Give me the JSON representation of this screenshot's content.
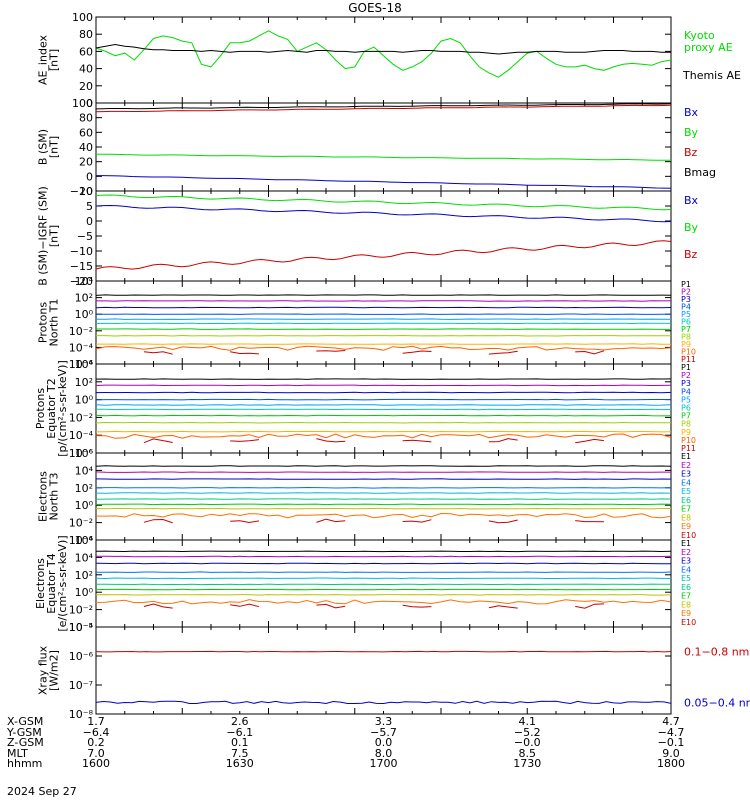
{
  "title": "GOES-18",
  "date_label": "2024 Sep 27",
  "colors": {
    "black": "#000000",
    "green": "#00dd00",
    "blue": "#0000cc",
    "red": "#cc0000"
  },
  "x_range": [
    1600,
    1800
  ],
  "chart_data": [
    {
      "type": "line",
      "name": "ae",
      "ylabel": [
        "AE_index",
        "[nT]"
      ],
      "yscale": "linear",
      "ylim": [
        0,
        100
      ],
      "yticks": [
        "0",
        "20",
        "40",
        "60",
        "80",
        "100"
      ],
      "series": [
        {
          "name": "Kyoto proxy AE",
          "label_lines": [
            "Kyoto",
            "proxy AE"
          ],
          "color": "#00dd00",
          "values": [
            64,
            60,
            55,
            58,
            50,
            62,
            75,
            78,
            76,
            72,
            70,
            45,
            42,
            55,
            70,
            70,
            72,
            78,
            84,
            78,
            74,
            60,
            65,
            70,
            62,
            50,
            40,
            42,
            60,
            65,
            55,
            45,
            38,
            42,
            48,
            58,
            72,
            75,
            70,
            55,
            42,
            35,
            30,
            38,
            48,
            58,
            60,
            52,
            45,
            42,
            42,
            44,
            40,
            38,
            42,
            45,
            46,
            45,
            44,
            48,
            50
          ]
        },
        {
          "name": "Themis AE",
          "label_lines": [
            "Themis AE"
          ],
          "color": "#000000",
          "values": [
            64,
            66,
            68,
            66,
            65,
            63,
            62,
            62,
            61,
            61,
            61,
            60,
            61,
            60,
            59,
            60,
            60,
            60,
            59,
            60,
            61,
            60,
            59,
            61,
            61,
            60,
            60,
            59,
            60,
            60,
            60,
            60,
            59,
            60,
            61,
            61,
            60,
            60,
            60,
            59,
            59,
            58,
            57,
            58,
            59,
            59,
            60,
            60,
            60,
            59,
            59,
            59,
            60,
            61,
            61,
            61,
            60,
            60,
            60,
            59,
            59
          ]
        }
      ]
    },
    {
      "type": "line",
      "name": "b-sm",
      "ylabel": [
        "B (SM)",
        "[nT]"
      ],
      "yscale": "linear",
      "ylim": [
        -20,
        100
      ],
      "yticks": [
        "−20",
        "0",
        "20",
        "40",
        "60",
        "80",
        "100"
      ],
      "series": [
        {
          "name": "Bx",
          "color": "#0000cc",
          "start": 1,
          "end": -16
        },
        {
          "name": "By",
          "color": "#00dd00",
          "start": 30,
          "end": 22
        },
        {
          "name": "Bz",
          "color": "#cc0000",
          "start": 88,
          "end": 97
        },
        {
          "name": "Bmag",
          "color": "#000000",
          "start": 92,
          "end": 99
        }
      ]
    },
    {
      "type": "line",
      "name": "b-igrf",
      "ylabel": [
        "B (SM)−IGRF (SM)",
        "[nT]"
      ],
      "yscale": "linear",
      "ylim": [
        -20,
        10
      ],
      "yticks": [
        "−20",
        "−15",
        "−10",
        "−5",
        "0",
        "5",
        "10"
      ],
      "series": [
        {
          "name": "Bx",
          "color": "#0000cc",
          "start": 5,
          "end": 0
        },
        {
          "name": "By",
          "color": "#00dd00",
          "start": 8.5,
          "end": 4
        },
        {
          "name": "Bz",
          "color": "#cc0000",
          "start": -16,
          "end": -7
        }
      ]
    },
    {
      "type": "line",
      "name": "protons-north-t1",
      "ylabel": [
        "Protons",
        "North T1"
      ],
      "yscale": "log",
      "ylim": [
        -6,
        4
      ],
      "yticks": [
        "10⁴",
        "10²",
        "10⁰",
        "10⁻²",
        "10⁻⁴",
        "10⁻⁶"
      ],
      "channels": [
        "P1",
        "P2",
        "P3",
        "P4",
        "P5",
        "P6",
        "P7",
        "P8",
        "P9",
        "P10",
        "P11"
      ],
      "levels": [
        2.3,
        1.6,
        0.8,
        0,
        -0.6,
        -1.1,
        -1.8,
        -2.6,
        -3.6,
        -4.1,
        -4.6
      ]
    },
    {
      "type": "line",
      "name": "protons-equator-t2",
      "ylabel": [
        "Protons",
        "Equator T2",
        "[p/(cm²-s-sr-keV)]"
      ],
      "yscale": "log",
      "ylim": [
        -6,
        4
      ],
      "yticks": [
        "10⁴",
        "10²",
        "10⁰",
        "10⁻²",
        "10⁻⁴",
        "10⁻⁶"
      ],
      "channels": [
        "P1",
        "P2",
        "P3",
        "P4",
        "P5",
        "P6",
        "P7",
        "P8",
        "P9",
        "P10",
        "P11"
      ],
      "levels": [
        2.3,
        1.6,
        0.8,
        0,
        -0.6,
        -1.1,
        -1.8,
        -2.6,
        -3.6,
        -4.1,
        -4.6
      ]
    },
    {
      "type": "line",
      "name": "electrons-north-t3",
      "ylabel": [
        "Electrons",
        "North T3"
      ],
      "yscale": "log",
      "ylim": [
        -4,
        6
      ],
      "yticks": [
        "10⁶",
        "10⁴",
        "10²",
        "10⁰",
        "10⁻²",
        "10⁻⁴"
      ],
      "channels": [
        "E1",
        "E2",
        "E3",
        "E4",
        "E5",
        "E6",
        "E7",
        "E8",
        "E9",
        "E10"
      ],
      "levels": [
        4.5,
        3.8,
        3.0,
        2.0,
        1.4,
        0.7,
        0.1,
        -0.4,
        -1.2,
        -1.8
      ]
    },
    {
      "type": "line",
      "name": "electrons-equator-t4",
      "ylabel": [
        "Electrons",
        "Equator T4",
        "[e/(cm²-s-sr-keV)]"
      ],
      "yscale": "log",
      "ylim": [
        -4,
        6
      ],
      "yticks": [
        "10⁶",
        "10⁴",
        "10²",
        "10⁰",
        "10⁻²",
        "10⁻⁴"
      ],
      "channels": [
        "E1",
        "E2",
        "E3",
        "E4",
        "E5",
        "E6",
        "E7",
        "E8",
        "E9",
        "E10"
      ],
      "levels": [
        4.7,
        4.1,
        3.3,
        2.3,
        1.6,
        0.9,
        0.3,
        -0.3,
        -1.1,
        -1.6
      ]
    },
    {
      "type": "line",
      "name": "xray",
      "ylabel": [
        "Xray flux",
        "[W/m2]"
      ],
      "yscale": "log",
      "ylim": [
        -8,
        -5
      ],
      "yticks": [
        "10⁻⁵",
        "10⁻⁶",
        "10⁻⁷",
        "10⁻⁸"
      ],
      "series": [
        {
          "name": "0.1−0.8 nm",
          "color": "#cc0000",
          "level": -5.85
        },
        {
          "name": "0.05−0.4 nm",
          "color": "#0000cc",
          "level": -7.6
        }
      ]
    }
  ],
  "axis_table": {
    "labels": [
      "X-GSM",
      "Y-GSM",
      "Z-GSM",
      "MLT",
      "hhmm"
    ],
    "columns": [
      [
        "1.7",
        "−6.4",
        "0.2",
        "7.0",
        "1600"
      ],
      [
        "2.6",
        "−6.1",
        "0.1",
        "7.5",
        "1630"
      ],
      [
        "3.3",
        "−5.7",
        "0.0",
        "8.0",
        "1700"
      ],
      [
        "4.1",
        "−5.2",
        "−0.0",
        "8.5",
        "1730"
      ],
      [
        "4.7",
        "−4.7",
        "−0.1",
        "9.0",
        "1800"
      ]
    ]
  },
  "channel_colors": {
    "P": [
      "#000000",
      "#b000b0",
      "#0000cc",
      "#0050ff",
      "#00a0ff",
      "#00c8c0",
      "#00cc00",
      "#a0d000",
      "#ffb000",
      "#ff6000",
      "#cc0000"
    ],
    "E": [
      "#000000",
      "#b000b0",
      "#0000cc",
      "#0070ff",
      "#00b8e0",
      "#00cc80",
      "#00cc00",
      "#c0c000",
      "#ff7000",
      "#cc0000"
    ]
  }
}
